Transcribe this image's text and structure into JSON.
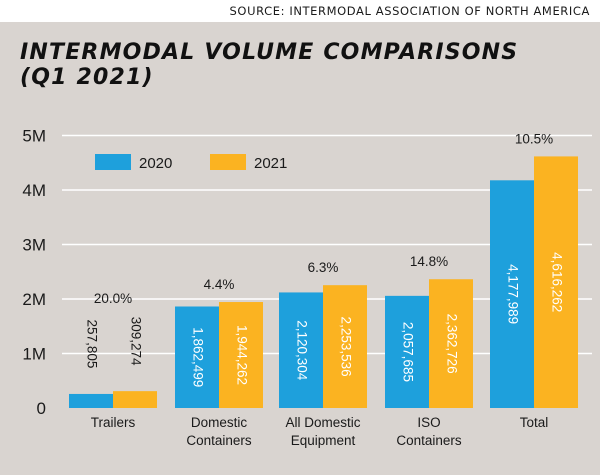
{
  "source": "SOURCE: INTERMODAL ASSOCIATION OF NORTH AMERICA",
  "title_line1": "INTERMODAL VOLUME COMPARISONS",
  "title_line2": "(Q1 2021)",
  "colors": {
    "s2020": "#1ea0dc",
    "s2021": "#fbb321",
    "background": "#d9d4d0",
    "grid": "#ffffff"
  },
  "chart_data": {
    "type": "bar",
    "categories": [
      [
        "Trailers"
      ],
      [
        "Domestic",
        "Containers"
      ],
      [
        "All Domestic",
        "Equipment"
      ],
      [
        "ISO",
        "Containers"
      ],
      [
        "Total"
      ]
    ],
    "series": [
      {
        "name": "2020",
        "values": [
          257805,
          1862499,
          2120304,
          2057685,
          4177989
        ],
        "labels": [
          "257,805",
          "1,862,499",
          "2,120,304",
          "2,057,685",
          "4,177,989"
        ]
      },
      {
        "name": "2021",
        "values": [
          309274,
          1944262,
          2253536,
          2362726,
          4616262
        ],
        "labels": [
          "309,274",
          "1,944,262",
          "2,253,536",
          "2,362,726",
          "4,616,262"
        ]
      }
    ],
    "pct_change": [
      "20.0%",
      "4.4%",
      "6.3%",
      "14.8%",
      "10.5%"
    ],
    "ylim": [
      0,
      5000000
    ],
    "yticks": [
      0,
      1000000,
      2000000,
      3000000,
      4000000,
      5000000
    ],
    "ytick_labels": [
      "0",
      "1M",
      "2M",
      "3M",
      "4M",
      "5M"
    ],
    "grid": true,
    "legend_position": "top-left"
  }
}
